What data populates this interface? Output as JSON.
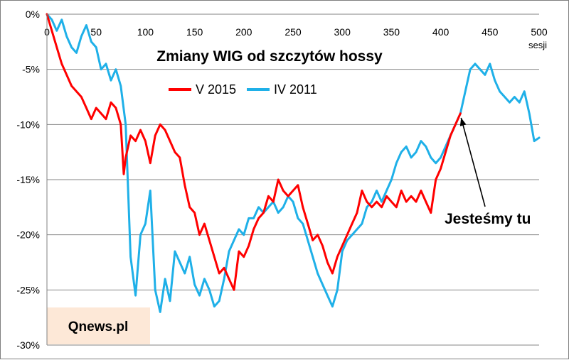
{
  "chart_data": {
    "type": "line",
    "title": "Zmiany WIG od szczytów hossy",
    "xlabel": "",
    "x_unit": "sesji",
    "ylabel": "",
    "xlim": [
      0,
      500
    ],
    "ylim": [
      -30,
      0
    ],
    "x_ticks": [
      0,
      50,
      100,
      150,
      200,
      250,
      300,
      350,
      400,
      450,
      500
    ],
    "y_ticks": [
      0,
      -5,
      -10,
      -15,
      -20,
      -25,
      -30
    ],
    "y_tick_labels": [
      "0%",
      "-5%",
      "-10%",
      "-15%",
      "-20%",
      "-25%",
      "-30%"
    ],
    "x_axis_position": "top",
    "grid": "horizontal",
    "legend_position": "top-center",
    "series": [
      {
        "name": "V 2015",
        "color": "#ff0000",
        "x": [
          0,
          5,
          10,
          15,
          20,
          25,
          30,
          35,
          40,
          45,
          50,
          55,
          60,
          65,
          70,
          75,
          78,
          80,
          85,
          90,
          95,
          100,
          105,
          110,
          115,
          120,
          125,
          130,
          135,
          140,
          145,
          150,
          155,
          160,
          165,
          170,
          175,
          180,
          185,
          190,
          195,
          200,
          205,
          210,
          215,
          220,
          225,
          230,
          235,
          240,
          245,
          250,
          255,
          260,
          265,
          270,
          275,
          280,
          285,
          290,
          295,
          300,
          305,
          310,
          315,
          320,
          325,
          330,
          335,
          340,
          345,
          350,
          355,
          360,
          365,
          370,
          375,
          380,
          385,
          390,
          395,
          400,
          405,
          410,
          415,
          420
        ],
        "values": [
          0,
          -1.5,
          -3,
          -4.5,
          -5.5,
          -6.5,
          -7,
          -7.5,
          -8.5,
          -9.5,
          -8.5,
          -9,
          -9.5,
          -8,
          -8.5,
          -10,
          -14.5,
          -13,
          -11,
          -11.5,
          -10.5,
          -11.5,
          -13.5,
          -11,
          -10,
          -10.5,
          -11.5,
          -12.5,
          -13,
          -15.5,
          -17.5,
          -18,
          -20,
          -19,
          -20.5,
          -22,
          -23.5,
          -23,
          -24,
          -25,
          -21.5,
          -22,
          -21,
          -19.5,
          -18.5,
          -18,
          -16.5,
          -17,
          -15,
          -16,
          -16.5,
          -16,
          -15.5,
          -17.5,
          -19,
          -20.5,
          -20,
          -21,
          -22.5,
          -23.5,
          -22,
          -21,
          -20,
          -19,
          -18,
          -16,
          -17,
          -17.5,
          -17,
          -17.5,
          -16.5,
          -17,
          -17.5,
          -16,
          -17,
          -16.5,
          -17,
          -16,
          -17,
          -18,
          -15,
          -14,
          -12.5,
          -11,
          -10,
          -9
        ]
      },
      {
        "name": "IV 2011",
        "color": "#1fb0e8",
        "x": [
          0,
          5,
          10,
          15,
          20,
          25,
          30,
          35,
          40,
          45,
          50,
          55,
          60,
          65,
          70,
          75,
          80,
          85,
          90,
          95,
          100,
          105,
          110,
          115,
          120,
          125,
          130,
          135,
          140,
          145,
          150,
          155,
          160,
          165,
          170,
          175,
          180,
          185,
          190,
          195,
          200,
          205,
          210,
          215,
          220,
          225,
          230,
          235,
          240,
          245,
          250,
          255,
          260,
          265,
          270,
          275,
          280,
          285,
          290,
          295,
          300,
          305,
          310,
          315,
          320,
          325,
          330,
          335,
          340,
          345,
          350,
          355,
          360,
          365,
          370,
          375,
          380,
          385,
          390,
          395,
          400,
          405,
          410,
          415,
          420,
          425,
          430,
          435,
          440,
          445,
          450,
          455,
          460,
          465,
          470,
          475,
          480,
          485,
          490,
          495,
          500
        ],
        "values": [
          0,
          -0.5,
          -1.5,
          -0.5,
          -2,
          -3,
          -3.5,
          -2,
          -1,
          -2.5,
          -3,
          -5,
          -4.5,
          -6,
          -5,
          -6.5,
          -10,
          -22,
          -25.5,
          -20,
          -19,
          -16,
          -25,
          -27,
          -24,
          -26,
          -21.5,
          -22.5,
          -23.5,
          -22,
          -24.5,
          -25.5,
          -24,
          -25,
          -26.5,
          -26,
          -24,
          -21.5,
          -20.5,
          -19.5,
          -20,
          -18.5,
          -18.5,
          -17.5,
          -18,
          -17.5,
          -17,
          -18,
          -17.5,
          -16.5,
          -17,
          -18.5,
          -19,
          -20.5,
          -22,
          -23.5,
          -24.5,
          -25.5,
          -26.5,
          -25,
          -21.5,
          -20.5,
          -20,
          -19.5,
          -19,
          -17.5,
          -17,
          -16,
          -17,
          -16,
          -15,
          -13.5,
          -12.5,
          -12,
          -13,
          -12.5,
          -11.5,
          -12,
          -13,
          -13.5,
          -13,
          -12,
          -11,
          -10,
          -9,
          -7,
          -5,
          -4.5,
          -5,
          -5.5,
          -4.5,
          -6,
          -7,
          -7.5,
          -8,
          -7.5,
          -8,
          -7,
          -9,
          -11.5,
          -11.2
        ]
      }
    ],
    "annotation": {
      "text": "Jesteśmy tu",
      "arrow_to": {
        "x": 420,
        "y": -9.2
      }
    },
    "watermark": {
      "text": "Qnews.pl",
      "fill": "#fde8d7"
    }
  }
}
